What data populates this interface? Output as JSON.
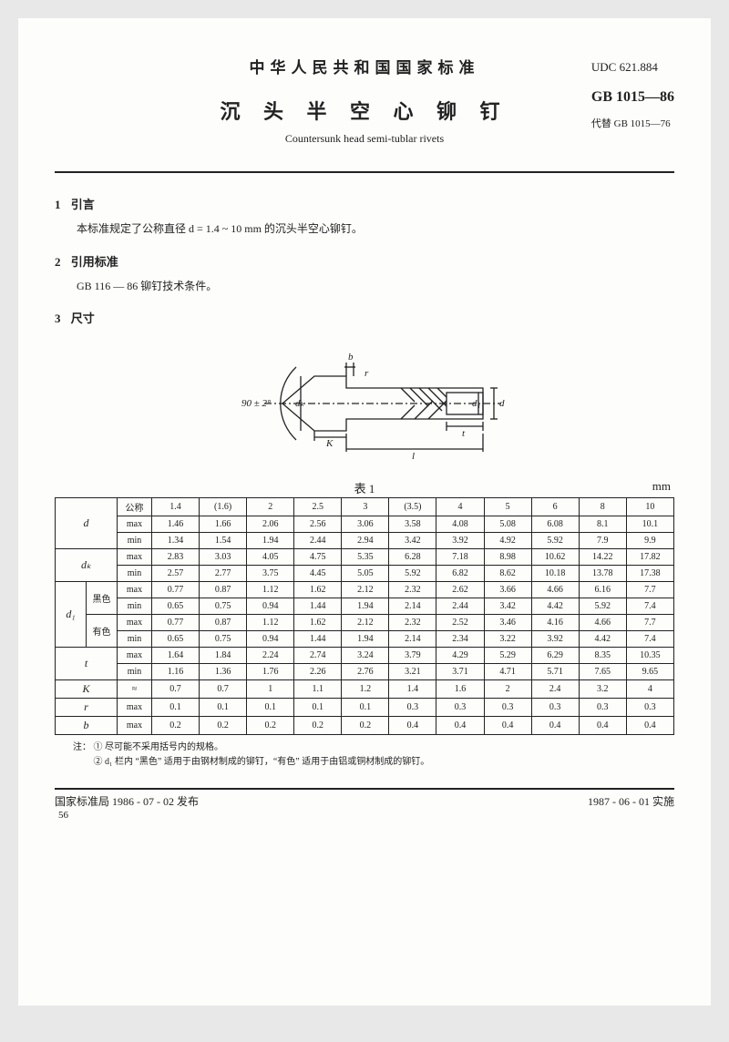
{
  "header": {
    "country_standard": "中华人民共和国国家标准",
    "title_cn": "沉 头 半 空 心 铆 钉",
    "title_en": "Countersunk head semi-tublar rivets",
    "udc": "UDC 621.884",
    "gb": "GB 1015—86",
    "replace": "代替 GB 1015—76"
  },
  "sections": {
    "s1": {
      "num": "1",
      "title": "引言",
      "text": "本标准规定了公称直径 d = 1.4 ~ 10 mm 的沉头半空心铆钉。"
    },
    "s2": {
      "num": "2",
      "title": "引用标准",
      "text": "GB 116 — 86 铆钉技术条件。"
    },
    "s3": {
      "num": "3",
      "title": "尺寸"
    }
  },
  "diagram": {
    "angle": "90 ± 2°",
    "labels": {
      "b": "b",
      "r": "r",
      "dk": "dₖ",
      "K": "K",
      "d1": "d₁",
      "d": "d",
      "t": "t",
      "l": "l"
    }
  },
  "table": {
    "caption": "表 1",
    "unit": "mm",
    "col_header_label": "公称",
    "col_headers": [
      "1.4",
      "(1.6)",
      "2",
      "2.5",
      "3",
      "(3.5)",
      "4",
      "5",
      "6",
      "8",
      "10"
    ],
    "rows": [
      {
        "sym": "d",
        "sub": "",
        "type": "max",
        "vals": [
          "1.46",
          "1.66",
          "2.06",
          "2.56",
          "3.06",
          "3.58",
          "4.08",
          "5.08",
          "6.08",
          "8.1",
          "10.1"
        ]
      },
      {
        "sym": "",
        "sub": "",
        "type": "min",
        "vals": [
          "1.34",
          "1.54",
          "1.94",
          "2.44",
          "2.94",
          "3.42",
          "3.92",
          "4.92",
          "5.92",
          "7.9",
          "9.9"
        ]
      },
      {
        "sym": "dₖ",
        "sub": "",
        "type": "max",
        "vals": [
          "2.83",
          "3.03",
          "4.05",
          "4.75",
          "5.35",
          "6.28",
          "7.18",
          "8.98",
          "10.62",
          "14.22",
          "17.82"
        ]
      },
      {
        "sym": "",
        "sub": "",
        "type": "min",
        "vals": [
          "2.57",
          "2.77",
          "3.75",
          "4.45",
          "5.05",
          "5.92",
          "6.82",
          "8.62",
          "10.18",
          "13.78",
          "17.38"
        ]
      },
      {
        "sym": "d₁",
        "sub": "黑色",
        "type": "max",
        "vals": [
          "0.77",
          "0.87",
          "1.12",
          "1.62",
          "2.12",
          "2.32",
          "2.62",
          "3.66",
          "4.66",
          "6.16",
          "7.7"
        ]
      },
      {
        "sym": "",
        "sub": "",
        "type": "min",
        "vals": [
          "0.65",
          "0.75",
          "0.94",
          "1.44",
          "1.94",
          "2.14",
          "2.44",
          "3.42",
          "4.42",
          "5.92",
          "7.4"
        ]
      },
      {
        "sym": "",
        "sub": "有色",
        "type": "max",
        "vals": [
          "0.77",
          "0.87",
          "1.12",
          "1.62",
          "2.12",
          "2.32",
          "2.52",
          "3.46",
          "4.16",
          "4.66",
          "7.7"
        ]
      },
      {
        "sym": "",
        "sub": "",
        "type": "min",
        "vals": [
          "0.65",
          "0.75",
          "0.94",
          "1.44",
          "1.94",
          "2.14",
          "2.34",
          "3.22",
          "3.92",
          "4.42",
          "7.4"
        ]
      },
      {
        "sym": "t",
        "sub": "",
        "type": "max",
        "vals": [
          "1.64",
          "1.84",
          "2.24",
          "2.74",
          "3.24",
          "3.79",
          "4.29",
          "5.29",
          "6.29",
          "8.35",
          "10.35"
        ]
      },
      {
        "sym": "",
        "sub": "",
        "type": "min",
        "vals": [
          "1.16",
          "1.36",
          "1.76",
          "2.26",
          "2.76",
          "3.21",
          "3.71",
          "4.71",
          "5.71",
          "7.65",
          "9.65"
        ]
      },
      {
        "sym": "K",
        "sub": "",
        "type": "≈",
        "vals": [
          "0.7",
          "0.7",
          "1",
          "1.1",
          "1.2",
          "1.4",
          "1.6",
          "2",
          "2.4",
          "3.2",
          "4"
        ]
      },
      {
        "sym": "r",
        "sub": "",
        "type": "max",
        "vals": [
          "0.1",
          "0.1",
          "0.1",
          "0.1",
          "0.1",
          "0.3",
          "0.3",
          "0.3",
          "0.3",
          "0.3",
          "0.3"
        ]
      },
      {
        "sym": "b",
        "sub": "",
        "type": "max",
        "vals": [
          "0.2",
          "0.2",
          "0.2",
          "0.2",
          "0.2",
          "0.4",
          "0.4",
          "0.4",
          "0.4",
          "0.4",
          "0.4"
        ]
      }
    ]
  },
  "notes": {
    "lead": "注：",
    "n1": "① 尽可能不采用括号内的规格。",
    "n2": "② d₁ 栏内 “黑色” 适用于由钢材制成的铆钉，“有色” 适用于由铝或铜材制成的铆钉。"
  },
  "footer": {
    "left": "国家标准局 1986 - 07 - 02 发布",
    "right": "1987 - 06 - 01 实施",
    "page": "56"
  }
}
